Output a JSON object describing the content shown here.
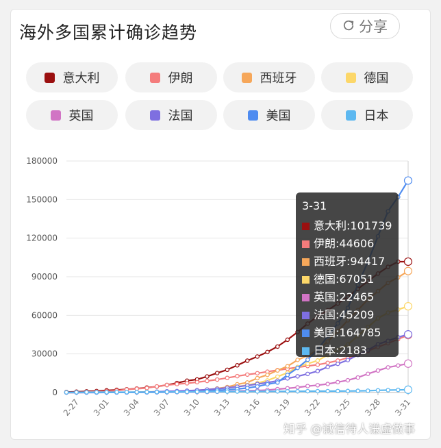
{
  "header": {
    "title": "海外多国累计确诊趋势",
    "share_label": "分享"
  },
  "legend": [
    {
      "name": "意大利",
      "color": "#9b1010"
    },
    {
      "name": "伊朗",
      "color": "#f47c7c"
    },
    {
      "name": "西班牙",
      "color": "#f6a75a"
    },
    {
      "name": "德国",
      "color": "#fcd769"
    },
    {
      "name": "英国",
      "color": "#d174c4"
    },
    {
      "name": "法国",
      "color": "#7e6fe0"
    },
    {
      "name": "美国",
      "color": "#4f8cf0"
    },
    {
      "name": "日本",
      "color": "#5db8f0"
    }
  ],
  "tooltip": {
    "date": "3-31",
    "rows": [
      {
        "text": "意大利:101739",
        "color": "#9b1010"
      },
      {
        "text": "伊朗:44606",
        "color": "#f47c7c"
      },
      {
        "text": "西班牙:94417",
        "color": "#f6a75a"
      },
      {
        "text": "德国:67051",
        "color": "#fcd769"
      },
      {
        "text": "英国:22465",
        "color": "#d174c4"
      },
      {
        "text": "法国:45209",
        "color": "#7e6fe0"
      },
      {
        "text": "美国:164785",
        "color": "#4f8cf0"
      },
      {
        "text": "日本:2183",
        "color": "#5db8f0"
      }
    ]
  },
  "watermark": "知乎 @诚信待人谦虚做事",
  "chart_data": {
    "type": "line",
    "x": [
      "2-26",
      "2-27",
      "2-28",
      "2-29",
      "3-01",
      "3-02",
      "3-03",
      "3-04",
      "3-05",
      "3-06",
      "3-07",
      "3-08",
      "3-09",
      "3-10",
      "3-11",
      "3-12",
      "3-13",
      "3-14",
      "3-15",
      "3-16",
      "3-17",
      "3-18",
      "3-19",
      "3-20",
      "3-21",
      "3-22",
      "3-23",
      "3-24",
      "3-25",
      "3-26",
      "3-27",
      "3-28",
      "3-29",
      "3-30",
      "3-31"
    ],
    "x_tick_labels": [
      "2-27",
      "3-01",
      "3-04",
      "3-07",
      "3-10",
      "3-13",
      "3-16",
      "3-19",
      "3-22",
      "3-25",
      "3-28",
      "3-31"
    ],
    "y_ticks": [
      0,
      30000,
      60000,
      90000,
      120000,
      150000,
      180000
    ],
    "ylim": [
      0,
      180000
    ],
    "grid": true,
    "series": [
      {
        "name": "意大利",
        "color": "#9b1010",
        "values": [
          400,
          650,
          890,
          1130,
          1690,
          2040,
          2500,
          3090,
          3860,
          4640,
          5880,
          7380,
          9170,
          10150,
          12460,
          15110,
          17660,
          21160,
          24750,
          27980,
          31510,
          35710,
          41040,
          47020,
          53580,
          59140,
          63930,
          69180,
          74390,
          80540,
          86500,
          92470,
          97690,
          101740,
          101739
        ]
      },
      {
        "name": "伊朗",
        "color": "#f47c7c",
        "values": [
          140,
          250,
          390,
          590,
          980,
          1500,
          2330,
          2920,
          3510,
          4750,
          5820,
          6570,
          7160,
          8040,
          9000,
          10080,
          11360,
          12730,
          13940,
          14990,
          16170,
          17360,
          18410,
          19640,
          20610,
          21640,
          23050,
          24810,
          27020,
          29410,
          32330,
          35410,
          38310,
          41500,
          44606
        ]
      },
      {
        "name": "西班牙",
        "color": "#f6a75a",
        "values": [
          10,
          20,
          30,
          50,
          80,
          120,
          170,
          230,
          280,
          370,
          500,
          670,
          1230,
          1700,
          2280,
          3150,
          4230,
          6390,
          7800,
          11180,
          13720,
          17150,
          20410,
          25370,
          28570,
          33090,
          39670,
          47610,
          56190,
          64060,
          72250,
          78800,
          85200,
          89500,
          94417
        ]
      },
      {
        "name": "德国",
        "color": "#fcd769",
        "values": [
          20,
          30,
          50,
          80,
          130,
          160,
          200,
          260,
          480,
          670,
          800,
          1040,
          1180,
          1570,
          1970,
          2750,
          3680,
          4600,
          5820,
          7270,
          9360,
          12330,
          15320,
          19850,
          22360,
          24870,
          29060,
          32990,
          37320,
          43940,
          50870,
          57700,
          62100,
          64500,
          67051
        ]
      },
      {
        "name": "英国",
        "color": "#d174c4",
        "values": [
          10,
          15,
          20,
          25,
          35,
          40,
          50,
          85,
          115,
          160,
          205,
          270,
          320,
          380,
          450,
          590,
          800,
          1140,
          1370,
          1540,
          1950,
          2630,
          3270,
          3980,
          5020,
          5680,
          6650,
          8080,
          9530,
          11660,
          14540,
          17090,
          19520,
          21000,
          22465
        ]
      },
      {
        "name": "法国",
        "color": "#7e6fe0",
        "values": [
          10,
          20,
          40,
          60,
          100,
          130,
          190,
          280,
          380,
          650,
          950,
          1130,
          1410,
          1780,
          2280,
          2870,
          3660,
          4500,
          5420,
          6630,
          7730,
          9130,
          10990,
          12610,
          14460,
          16690,
          19860,
          22300,
          25230,
          29150,
          32960,
          37580,
          40170,
          43000,
          45209
        ]
      },
      {
        "name": "美国",
        "color": "#4f8cf0",
        "values": [
          15,
          18,
          20,
          25,
          30,
          60,
          100,
          130,
          160,
          230,
          340,
          460,
          580,
          750,
          1050,
          1670,
          2180,
          2730,
          3500,
          4660,
          6420,
          7780,
          13680,
          19100,
          25490,
          33270,
          43850,
          53740,
          65780,
          83840,
          101660,
          121480,
          140890,
          152000,
          164785
        ]
      },
      {
        "name": "日本",
        "color": "#5db8f0",
        "values": [
          160,
          185,
          210,
          240,
          250,
          270,
          290,
          310,
          340,
          370,
          430,
          470,
          500,
          580,
          620,
          670,
          710,
          780,
          810,
          830,
          850,
          880,
          910,
          960,
          1010,
          1050,
          1090,
          1140,
          1190,
          1300,
          1400,
          1690,
          1870,
          2050,
          2183
        ]
      }
    ]
  }
}
